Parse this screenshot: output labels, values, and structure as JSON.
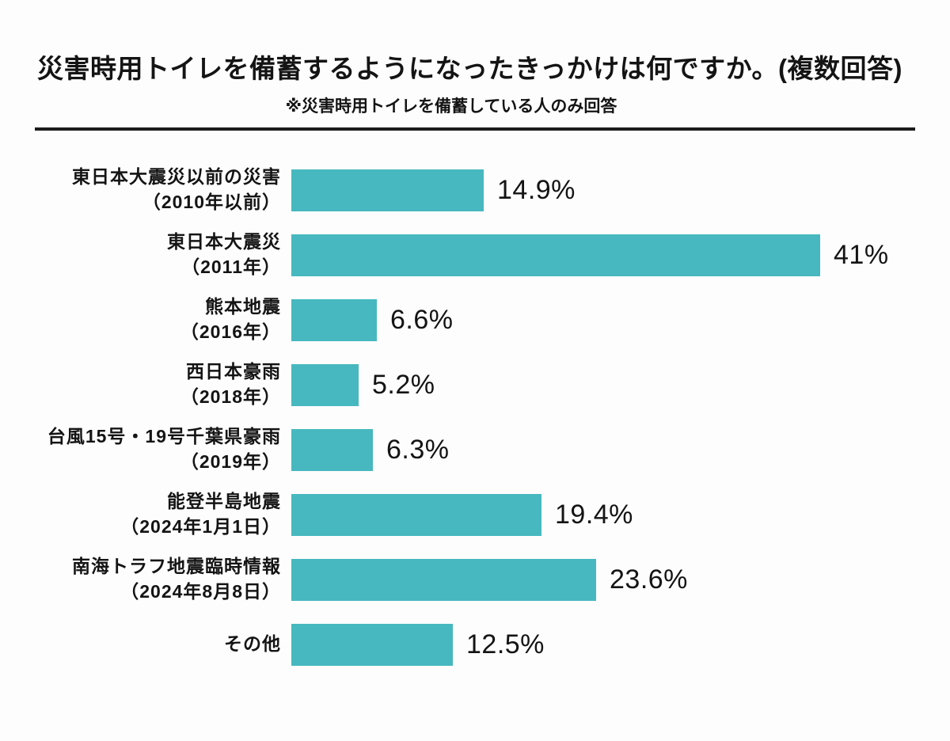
{
  "header": {
    "title": "災害時用トイレを備蓄するようになったきっかけは何ですか。(複数回答)",
    "subtitle": "※災害時用トイレを備蓄している人のみ回答"
  },
  "chart_data": {
    "type": "bar",
    "orientation": "horizontal",
    "title": "災害時用トイレを備蓄するようになったきっかけは何ですか。(複数回答)",
    "subtitle": "※災害時用トイレを備蓄している人のみ回答",
    "unit": "%",
    "xlim": [
      0,
      41
    ],
    "grid": false,
    "legend": false,
    "bar_color": "#47b8bf",
    "text_color": "#141414",
    "bars": [
      {
        "label": "東日本大震災以前の災害",
        "sublabel": "（2010年以前）",
        "value": 14.9,
        "value_label": "14.9%"
      },
      {
        "label": "東日本大震災",
        "sublabel": "（2011年）",
        "value": 41,
        "value_label": "41%"
      },
      {
        "label": "熊本地震",
        "sublabel": "（2016年）",
        "value": 6.6,
        "value_label": "6.6%"
      },
      {
        "label": "西日本豪雨",
        "sublabel": "（2018年）",
        "value": 5.2,
        "value_label": "5.2%"
      },
      {
        "label": "台風15号・19号千葉県豪雨",
        "sublabel": "（2019年）",
        "value": 6.3,
        "value_label": "6.3%"
      },
      {
        "label": "能登半島地震",
        "sublabel": "（2024年1月1日）",
        "value": 19.4,
        "value_label": "19.4%"
      },
      {
        "label": "南海トラフ地震臨時情報",
        "sublabel": "（2024年8月8日）",
        "value": 23.6,
        "value_label": "23.6%"
      },
      {
        "label": "その他",
        "sublabel": "",
        "value": 12.5,
        "value_label": "12.5%"
      }
    ]
  }
}
